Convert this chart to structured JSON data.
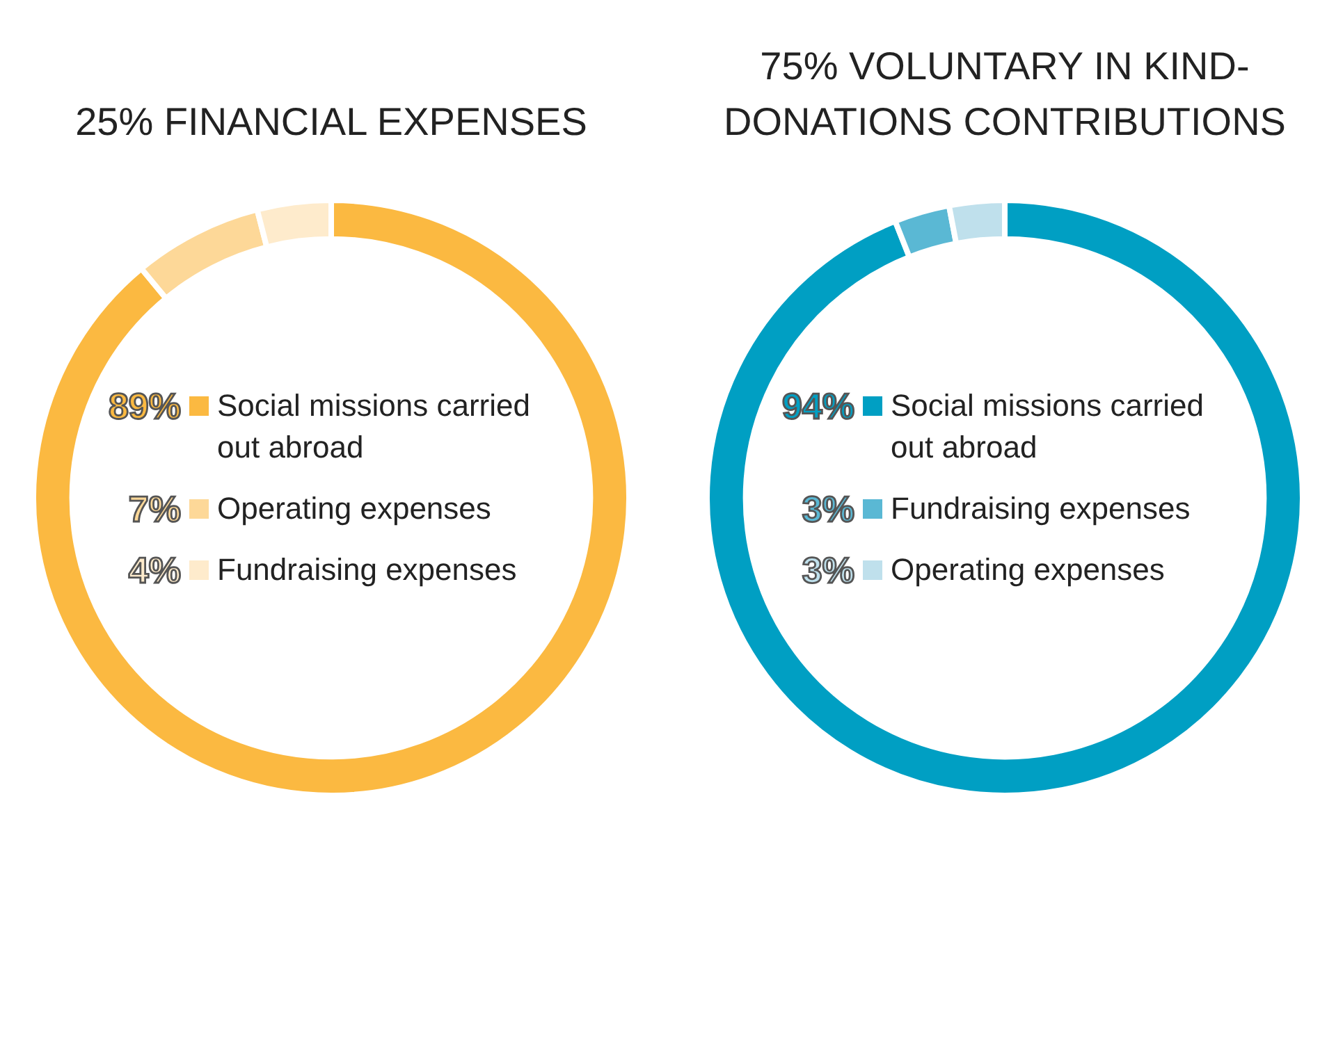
{
  "chart_data": [
    {
      "type": "donut",
      "title": "25% FINANCIAL EXPENSES",
      "categories": [
        "Social missions carried out abroad",
        "Operating expenses",
        "Fundraising expenses"
      ],
      "values": [
        89,
        7,
        4
      ],
      "colors": [
        "#fbb941",
        "#fdd898",
        "#feebcc"
      ],
      "value_labels": [
        "89%",
        "7%",
        "4%"
      ],
      "legend": "center"
    },
    {
      "type": "donut",
      "title": "75% VOLUNTARY IN KIND-DONATIONS CONTRIBUTIONS",
      "categories": [
        "Social missions carried out abroad",
        "Fundraising expenses",
        "Operating expenses"
      ],
      "values": [
        94,
        3,
        3
      ],
      "colors": [
        "#009fc3",
        "#5ab8d4",
        "#bfe0ec"
      ],
      "value_labels": [
        "94%",
        "3%",
        "3%"
      ],
      "legend": "center"
    }
  ]
}
